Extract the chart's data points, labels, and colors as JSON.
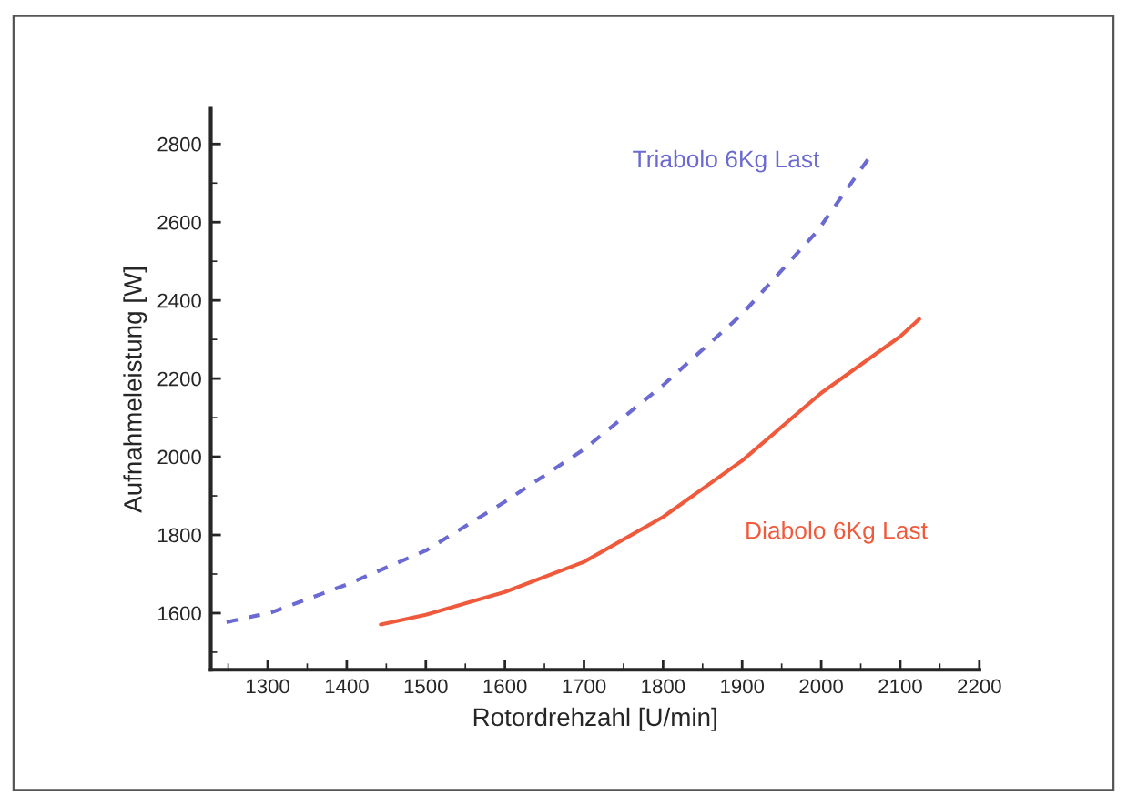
{
  "chart_data": {
    "type": "line",
    "xlabel": "Rotordrehzahl [U/min]",
    "ylabel": "Aufnahmeleistung [W]",
    "xlim": [
      1228,
      2200
    ],
    "ylim": [
      1455,
      2890
    ],
    "xticks": [
      1300,
      1400,
      1500,
      1600,
      1700,
      1800,
      1900,
      2000,
      2100,
      2200
    ],
    "yticks": [
      1600,
      1800,
      2000,
      2200,
      2400,
      2600,
      2800
    ],
    "grid": false,
    "legend": false,
    "series": [
      {
        "name": "Triabolo 6Kg Last",
        "color": "#6a6ad2",
        "line_style": "dashed",
        "x": [
          1248,
          1305,
          1400,
          1500,
          1600,
          1700,
          1800,
          1900,
          1995,
          2062
        ],
        "values": [
          1577,
          1602,
          1673,
          1760,
          1885,
          2019,
          2183,
          2365,
          2577,
          2769
        ]
      },
      {
        "name": "Diabolo 6Kg Last",
        "color": "#f05a3c",
        "line_style": "solid",
        "x": [
          1443,
          1500,
          1600,
          1700,
          1800,
          1900,
          2000,
          2100,
          2124
        ],
        "values": [
          1571,
          1596,
          1654,
          1731,
          1846,
          1990,
          2163,
          2308,
          2352
        ]
      }
    ]
  }
}
